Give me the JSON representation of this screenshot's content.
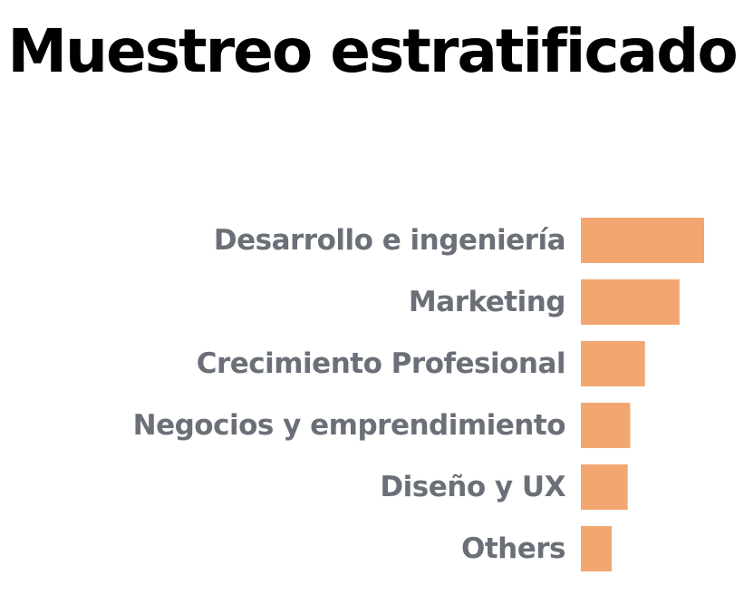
{
  "title": "Muestreo estratificado",
  "colors": {
    "bar": "#f2a771",
    "label": "#6b6f78",
    "title": "#000000",
    "background": "#ffffff"
  },
  "chart_data": {
    "type": "bar",
    "orientation": "horizontal",
    "categories": [
      "Desarrollo e ingeniería",
      "Marketing",
      "Crecimiento Profesional",
      "Negocios y emprendimiento",
      "Diseño y UX",
      "Others"
    ],
    "values": [
      100,
      80,
      52,
      40,
      38,
      25
    ],
    "xlabel": "",
    "ylabel": "",
    "grid": false,
    "legend": "none"
  }
}
